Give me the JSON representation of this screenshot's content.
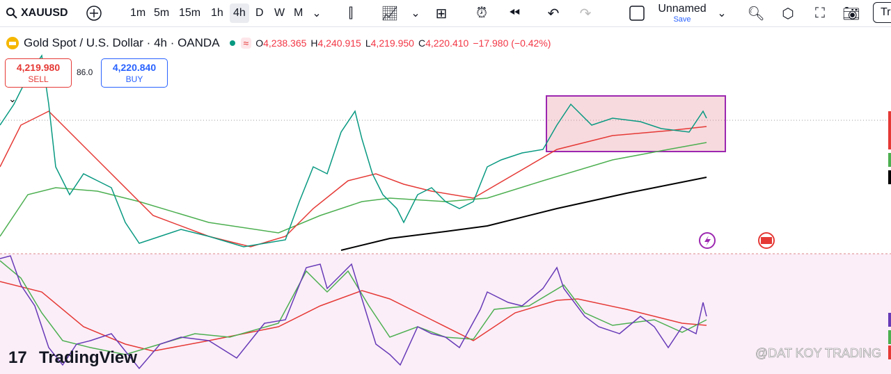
{
  "toolbar": {
    "symbol": "XAUUSD",
    "intervals": [
      "1m",
      "5m",
      "15m",
      "1h",
      "4h",
      "D",
      "W",
      "M"
    ],
    "active_interval": "4h",
    "layout_name": "Unnamed",
    "save": "Save",
    "trade_button": "Tr"
  },
  "legend": {
    "title": "Gold Spot / U.S. Dollar · 4h · OANDA",
    "ohlc": [
      {
        "label": "O",
        "value": "4,238.365"
      },
      {
        "label": "H",
        "value": "4,240.915"
      },
      {
        "label": "L",
        "value": "4,219.950"
      },
      {
        "label": "C",
        "value": "4,220.410"
      }
    ],
    "change": "−17.980 (−0.42%)"
  },
  "trade": {
    "sell": {
      "price": "4,219.980",
      "label": "SELL"
    },
    "spread": "86.0",
    "buy": {
      "price": "4,220.840",
      "label": "BUY"
    }
  },
  "branding": {
    "logo": "TradingView",
    "watermark": "@DAT KOY TRADING"
  }
}
